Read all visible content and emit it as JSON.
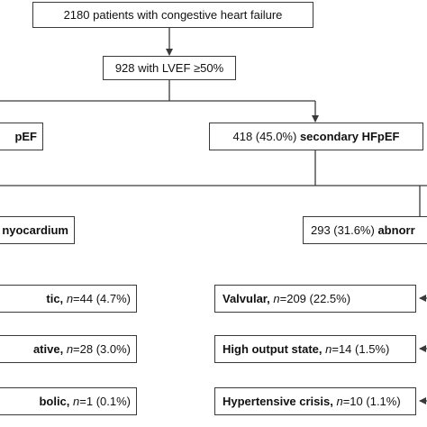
{
  "nodes": {
    "total": {
      "text": "2180 patients with congestive heart failure"
    },
    "lvef": {
      "text": "928 with LVEF ≥50%"
    },
    "primary": {
      "text": "pEF"
    },
    "secondary": {
      "count": "418 (45.0%)",
      "label": "secondary HFpEF"
    },
    "myocardium": {
      "text": "nyocardium"
    },
    "abnormal": {
      "count": "293 (31.6%)",
      "label": "abnorr"
    },
    "left_row1": {
      "label": "tic,",
      "n_symbol": "n",
      "value": "=44 (4.7%)"
    },
    "left_row2": {
      "label": "ative,",
      "n_symbol": "n",
      "value": "=28 (3.0%)"
    },
    "left_row3": {
      "label": "bolic,",
      "n_symbol": "n",
      "value": "=1 (0.1%)"
    },
    "right_row1": {
      "label": "Valvular,",
      "n_symbol": "n",
      "value": "=209 (22.5%)"
    },
    "right_row2": {
      "label": "High output state,",
      "n_symbol": "n",
      "value": "=14 (1.5%)"
    },
    "right_row3": {
      "label": "Hypertensive crisis,",
      "n_symbol": "n",
      "value": "=10 (1.1%)"
    }
  },
  "colors": {
    "line": "#3a3a3a",
    "text": "#111111"
  }
}
